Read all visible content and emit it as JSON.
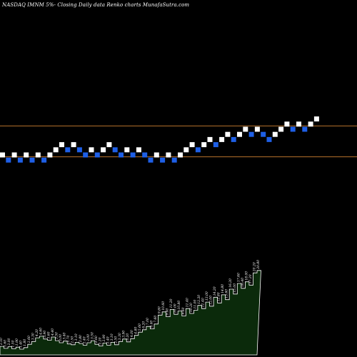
{
  "title": "NASDAQ IMNM 5%-  Closing Daily data  Renko  charts MunafaSutra.com",
  "colors": {
    "background": "#000000",
    "brick_up": "#ffffff",
    "brick_down": "#1e5fe6",
    "reference_line": "#b8722c",
    "volume_fill": "#0b2a0b",
    "volume_stroke": "#ffffff",
    "volume_label": "#ffffff"
  },
  "chart_data": {
    "type": "renko",
    "title": "NASDAQ IMNM 5%-  Closing Daily data  Renko  charts MunafaSutra.com",
    "brick_size": "5%",
    "bricks": [
      {
        "dir": "up",
        "level": 0
      },
      {
        "dir": "down",
        "level": -1
      },
      {
        "dir": "up",
        "level": 0
      },
      {
        "dir": "down",
        "level": -1
      },
      {
        "dir": "up",
        "level": 0
      },
      {
        "dir": "down",
        "level": -1
      },
      {
        "dir": "up",
        "level": 0
      },
      {
        "dir": "down",
        "level": -1
      },
      {
        "dir": "up",
        "level": 0
      },
      {
        "dir": "up",
        "level": 1
      },
      {
        "dir": "up",
        "level": 2
      },
      {
        "dir": "down",
        "level": 1
      },
      {
        "dir": "up",
        "level": 2
      },
      {
        "dir": "down",
        "level": 1
      },
      {
        "dir": "down",
        "level": 0
      },
      {
        "dir": "up",
        "level": 1
      },
      {
        "dir": "down",
        "level": 0
      },
      {
        "dir": "up",
        "level": 1
      },
      {
        "dir": "up",
        "level": 2
      },
      {
        "dir": "down",
        "level": 1
      },
      {
        "dir": "down",
        "level": 0
      },
      {
        "dir": "up",
        "level": 1
      },
      {
        "dir": "down",
        "level": 0
      },
      {
        "dir": "up",
        "level": 1
      },
      {
        "dir": "down",
        "level": 0
      },
      {
        "dir": "down",
        "level": -1
      },
      {
        "dir": "up",
        "level": 0
      },
      {
        "dir": "down",
        "level": -1
      },
      {
        "dir": "up",
        "level": 0
      },
      {
        "dir": "down",
        "level": -1
      },
      {
        "dir": "up",
        "level": 0
      },
      {
        "dir": "up",
        "level": 1
      },
      {
        "dir": "up",
        "level": 2
      },
      {
        "dir": "down",
        "level": 1
      },
      {
        "dir": "up",
        "level": 2
      },
      {
        "dir": "up",
        "level": 3
      },
      {
        "dir": "down",
        "level": 2
      },
      {
        "dir": "up",
        "level": 3
      },
      {
        "dir": "up",
        "level": 4
      },
      {
        "dir": "down",
        "level": 3
      },
      {
        "dir": "up",
        "level": 4
      },
      {
        "dir": "up",
        "level": 5
      },
      {
        "dir": "down",
        "level": 4
      },
      {
        "dir": "up",
        "level": 5
      },
      {
        "dir": "down",
        "level": 4
      },
      {
        "dir": "down",
        "level": 3
      },
      {
        "dir": "up",
        "level": 4
      },
      {
        "dir": "up",
        "level": 5
      },
      {
        "dir": "up",
        "level": 6
      },
      {
        "dir": "down",
        "level": 5
      },
      {
        "dir": "up",
        "level": 6
      },
      {
        "dir": "down",
        "level": 5
      },
      {
        "dir": "up",
        "level": 6
      },
      {
        "dir": "up",
        "level": 7
      }
    ],
    "reference_lines": [
      {
        "level": 5.5
      },
      {
        "level": -0.5
      }
    ],
    "volume": [
      2.1,
      1.6,
      2.0,
      1.5,
      1.9,
      1.4,
      1.8,
      2.6,
      3.3,
      4.2,
      4.6,
      3.9,
      3.6,
      4.4,
      3.5,
      3.0,
      3.4,
      2.7,
      2.5,
      3.1,
      2.8,
      2.4,
      3.0,
      3.5,
      2.6,
      2.2,
      2.9,
      2.4,
      3.1,
      2.5,
      3.3,
      3.9,
      3.2,
      4.0,
      4.8,
      5.6,
      6.2,
      7.0,
      6.4,
      7.6,
      9.8,
      10.6,
      9.4,
      11.2,
      10.0,
      10.8,
      9.6,
      11.4,
      10.2,
      11.0,
      12.2,
      11.4,
      13.0,
      12.0,
      14.2,
      12.8,
      14.8,
      13.6,
      16.2,
      15.0,
      17.6,
      16.4,
      18.0,
      17.2,
      20.2,
      20.8
    ]
  }
}
